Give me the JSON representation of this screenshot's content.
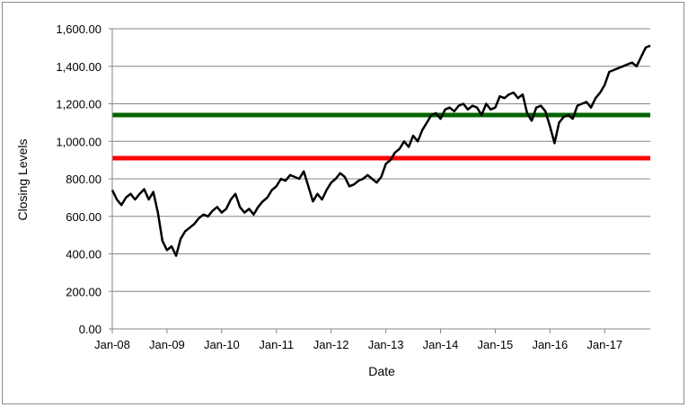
{
  "chart_data": {
    "type": "line",
    "title": "",
    "xlabel": "Date",
    "ylabel": "Closing  Levels",
    "ylim": [
      0,
      1600
    ],
    "y_ticks": [
      0,
      200,
      400,
      600,
      800,
      1000,
      1200,
      1400,
      1600
    ],
    "y_tick_labels": [
      "0.00",
      "200.00",
      "400.00",
      "600.00",
      "800.00",
      "1,000.00",
      "1,200.00",
      "1,400.00",
      "1,600.00"
    ],
    "x_ticks": [
      "2008-01",
      "2009-01",
      "2010-01",
      "2011-01",
      "2012-01",
      "2013-01",
      "2014-01",
      "2015-01",
      "2016-01",
      "2017-01"
    ],
    "x_tick_labels": [
      "Jan-08",
      "Jan-09",
      "Jan-10",
      "Jan-11",
      "Jan-12",
      "Jan-13",
      "Jan-14",
      "Jan-15",
      "Jan-16",
      "Jan-17"
    ],
    "xlim": [
      "2008-01",
      "2017-11"
    ],
    "grid": "horizontal",
    "legend": "none",
    "series": [
      {
        "color": "#000000",
        "points": [
          [
            "2008-01",
            740
          ],
          [
            "2008-02",
            690
          ],
          [
            "2008-03",
            660
          ],
          [
            "2008-04",
            700
          ],
          [
            "2008-05",
            720
          ],
          [
            "2008-06",
            690
          ],
          [
            "2008-07",
            720
          ],
          [
            "2008-08",
            745
          ],
          [
            "2008-09",
            690
          ],
          [
            "2008-10",
            730
          ],
          [
            "2008-11",
            620
          ],
          [
            "2008-12",
            470
          ],
          [
            "2009-01",
            420
          ],
          [
            "2009-02",
            440
          ],
          [
            "2009-03",
            390
          ],
          [
            "2009-04",
            480
          ],
          [
            "2009-05",
            520
          ],
          [
            "2009-06",
            540
          ],
          [
            "2009-07",
            560
          ],
          [
            "2009-08",
            590
          ],
          [
            "2009-09",
            610
          ],
          [
            "2009-10",
            600
          ],
          [
            "2009-11",
            630
          ],
          [
            "2009-12",
            650
          ],
          [
            "2010-01",
            620
          ],
          [
            "2010-02",
            640
          ],
          [
            "2010-03",
            690
          ],
          [
            "2010-04",
            720
          ],
          [
            "2010-05",
            650
          ],
          [
            "2010-06",
            620
          ],
          [
            "2010-07",
            640
          ],
          [
            "2010-08",
            610
          ],
          [
            "2010-09",
            650
          ],
          [
            "2010-10",
            680
          ],
          [
            "2010-11",
            700
          ],
          [
            "2010-12",
            740
          ],
          [
            "2011-01",
            760
          ],
          [
            "2011-02",
            800
          ],
          [
            "2011-03",
            790
          ],
          [
            "2011-04",
            820
          ],
          [
            "2011-05",
            810
          ],
          [
            "2011-06",
            800
          ],
          [
            "2011-07",
            840
          ],
          [
            "2011-08",
            760
          ],
          [
            "2011-09",
            680
          ],
          [
            "2011-10",
            720
          ],
          [
            "2011-11",
            690
          ],
          [
            "2011-12",
            740
          ],
          [
            "2012-01",
            780
          ],
          [
            "2012-02",
            800
          ],
          [
            "2012-03",
            830
          ],
          [
            "2012-04",
            810
          ],
          [
            "2012-05",
            760
          ],
          [
            "2012-06",
            770
          ],
          [
            "2012-07",
            790
          ],
          [
            "2012-08",
            800
          ],
          [
            "2012-09",
            820
          ],
          [
            "2012-10",
            800
          ],
          [
            "2012-11",
            780
          ],
          [
            "2012-12",
            810
          ],
          [
            "2013-01",
            880
          ],
          [
            "2013-02",
            900
          ],
          [
            "2013-03",
            940
          ],
          [
            "2013-04",
            960
          ],
          [
            "2013-05",
            1000
          ],
          [
            "2013-06",
            970
          ],
          [
            "2013-07",
            1030
          ],
          [
            "2013-08",
            1000
          ],
          [
            "2013-09",
            1060
          ],
          [
            "2013-10",
            1100
          ],
          [
            "2013-11",
            1140
          ],
          [
            "2013-12",
            1150
          ],
          [
            "2014-01",
            1120
          ],
          [
            "2014-02",
            1170
          ],
          [
            "2014-03",
            1180
          ],
          [
            "2014-04",
            1160
          ],
          [
            "2014-05",
            1190
          ],
          [
            "2014-06",
            1200
          ],
          [
            "2014-07",
            1170
          ],
          [
            "2014-08",
            1190
          ],
          [
            "2014-09",
            1180
          ],
          [
            "2014-10",
            1140
          ],
          [
            "2014-11",
            1200
          ],
          [
            "2014-12",
            1170
          ],
          [
            "2015-01",
            1180
          ],
          [
            "2015-02",
            1240
          ],
          [
            "2015-03",
            1230
          ],
          [
            "2015-04",
            1250
          ],
          [
            "2015-05",
            1260
          ],
          [
            "2015-06",
            1230
          ],
          [
            "2015-07",
            1250
          ],
          [
            "2015-08",
            1150
          ],
          [
            "2015-09",
            1110
          ],
          [
            "2015-10",
            1180
          ],
          [
            "2015-11",
            1190
          ],
          [
            "2015-12",
            1160
          ],
          [
            "2016-01",
            1080
          ],
          [
            "2016-02",
            990
          ],
          [
            "2016-03",
            1100
          ],
          [
            "2016-04",
            1130
          ],
          [
            "2016-05",
            1140
          ],
          [
            "2016-06",
            1120
          ],
          [
            "2016-07",
            1190
          ],
          [
            "2016-08",
            1200
          ],
          [
            "2016-09",
            1210
          ],
          [
            "2016-10",
            1180
          ],
          [
            "2016-11",
            1230
          ],
          [
            "2016-12",
            1260
          ],
          [
            "2017-01",
            1300
          ],
          [
            "2017-02",
            1370
          ],
          [
            "2017-03",
            1380
          ],
          [
            "2017-04",
            1390
          ],
          [
            "2017-05",
            1400
          ],
          [
            "2017-06",
            1410
          ],
          [
            "2017-07",
            1420
          ],
          [
            "2017-08",
            1400
          ],
          [
            "2017-09",
            1450
          ],
          [
            "2017-10",
            1500
          ],
          [
            "2017-11",
            1510
          ]
        ]
      }
    ],
    "reference_lines": [
      {
        "value": 1140,
        "color": "#006400"
      },
      {
        "value": 910,
        "color": "#ff0000"
      }
    ]
  }
}
